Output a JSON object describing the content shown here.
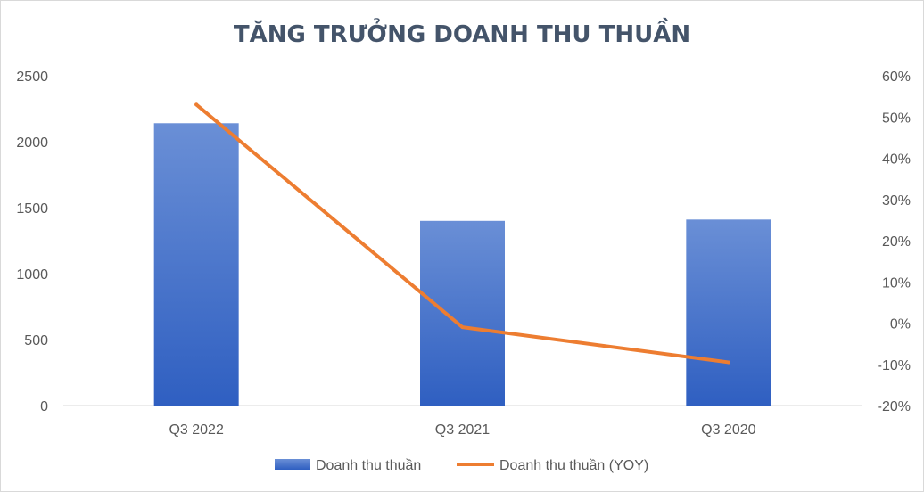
{
  "chart_data": {
    "type": "bar",
    "title": "TĂNG TRƯỞNG DOANH THU THUẦN",
    "categories": [
      "Q3 2022",
      "Q3 2021",
      "Q3 2020"
    ],
    "series": [
      {
        "name": "Doanh thu thuần",
        "type": "bar",
        "axis": "left",
        "values": [
          2140,
          1400,
          1410
        ],
        "color": "#4472c4"
      },
      {
        "name": "Doanh thu thuần (YOY)",
        "type": "line",
        "axis": "right",
        "values": [
          53,
          -1,
          -9.5
        ],
        "color": "#ed7d31"
      }
    ],
    "y_left": {
      "ylim": [
        0,
        2500
      ],
      "ticks": [
        "0",
        "500",
        "1000",
        "1500",
        "2000",
        "2500"
      ]
    },
    "y_right": {
      "ylim": [
        -20,
        60
      ],
      "ticks": [
        "-20%",
        "-10%",
        "0%",
        "10%",
        "20%",
        "30%",
        "40%",
        "50%",
        "60%"
      ]
    },
    "xlabel": "",
    "ylabel": "",
    "grid": false,
    "legend": "bottom"
  }
}
